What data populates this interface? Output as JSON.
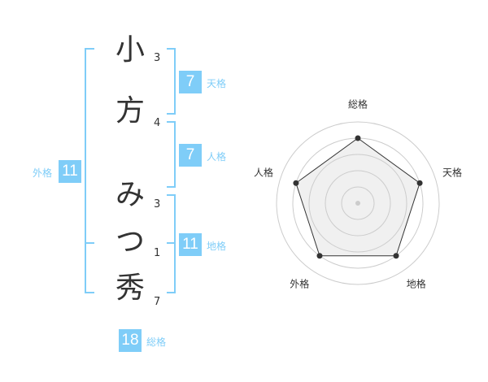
{
  "name": {
    "characters": [
      {
        "char": "小",
        "strokes": "3"
      },
      {
        "char": "方",
        "strokes": "4"
      },
      {
        "char": "み",
        "strokes": "3"
      },
      {
        "char": "つ",
        "strokes": "1"
      },
      {
        "char": "秀",
        "strokes": "7"
      }
    ]
  },
  "fortunes": {
    "tenkaku": {
      "label": "天格",
      "value": "7"
    },
    "jinkaku": {
      "label": "人格",
      "value": "7"
    },
    "chikaku": {
      "label": "地格",
      "value": "11"
    },
    "gaikaku": {
      "label": "外格",
      "value": "11"
    },
    "soukaku": {
      "label": "総格",
      "value": "18"
    }
  },
  "colors": {
    "accent": "#7fcdf8",
    "text": "#333333",
    "radar_fill": "#f0f0f0",
    "ring": "#cccccc"
  },
  "chart_data": {
    "type": "radar",
    "axes": [
      "総格",
      "天格",
      "地格",
      "外格",
      "人格"
    ],
    "values": [
      4,
      4,
      4,
      4,
      4
    ],
    "range": [
      0,
      5
    ],
    "rings": 5
  }
}
